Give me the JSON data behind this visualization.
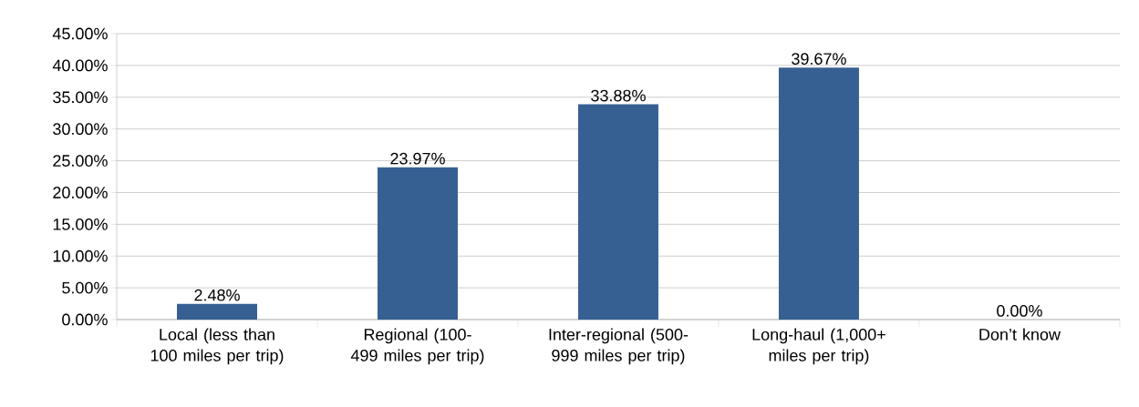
{
  "chart_data": {
    "type": "bar",
    "categories": [
      "Local (less than 100 miles per trip)",
      "Regional (100-499 miles per trip)",
      "Inter-regional (500-999 miles per trip)",
      "Long-haul (1,000+ miles per trip)",
      "Don’t know"
    ],
    "values": [
      2.48,
      23.97,
      33.88,
      39.67,
      0
    ],
    "value_labels": [
      "2.48%",
      "23.97%",
      "33.88%",
      "39.67%",
      "0.00%"
    ],
    "color": "#376092",
    "ylim": [
      0,
      45
    ],
    "yticks": [
      {
        "value": 0,
        "label": "0.00%"
      },
      {
        "value": 5,
        "label": "5.00%"
      },
      {
        "value": 10,
        "label": "10.00%"
      },
      {
        "value": 15,
        "label": "15.00%"
      },
      {
        "value": 20,
        "label": "20.00%"
      },
      {
        "value": 25,
        "label": "25.00%"
      },
      {
        "value": 30,
        "label": "30.00%"
      },
      {
        "value": 35,
        "label": "35.00%"
      },
      {
        "value": 40,
        "label": "40.00%"
      },
      {
        "value": 45,
        "label": "45.00%"
      }
    ],
    "grid": "y"
  }
}
